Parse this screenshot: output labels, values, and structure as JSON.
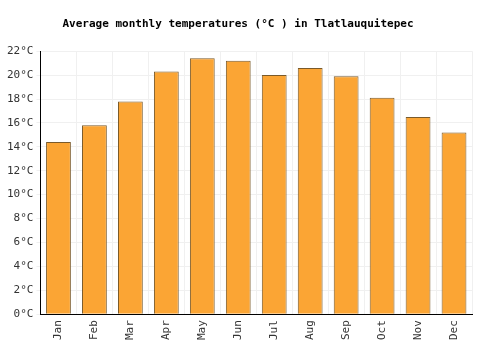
{
  "chart_data": {
    "type": "bar",
    "title": "Average monthly temperatures (°C ) in Tlatlauquitepec",
    "categories": [
      "Jan",
      "Feb",
      "Mar",
      "Apr",
      "May",
      "Jun",
      "Jul",
      "Aug",
      "Sep",
      "Oct",
      "Nov",
      "Dec"
    ],
    "values": [
      14.4,
      15.8,
      17.8,
      20.3,
      21.4,
      21.2,
      20.0,
      20.6,
      19.9,
      18.1,
      16.5,
      15.2
    ],
    "color": "#fba534",
    "ylim": [
      0,
      22
    ],
    "yticks": [
      {
        "value": 0,
        "label": "0°C"
      },
      {
        "value": 2,
        "label": "2°C"
      },
      {
        "value": 4,
        "label": "4°C"
      },
      {
        "value": 6,
        "label": "6°C"
      },
      {
        "value": 8,
        "label": "8°C"
      },
      {
        "value": 10,
        "label": "10°C"
      },
      {
        "value": 12,
        "label": "12°C"
      },
      {
        "value": 14,
        "label": "14°C"
      },
      {
        "value": 16,
        "label": "16°C"
      },
      {
        "value": 18,
        "label": "18°C"
      },
      {
        "value": 20,
        "label": "20°C"
      },
      {
        "value": 22,
        "label": "22°C"
      }
    ],
    "grid": true
  }
}
